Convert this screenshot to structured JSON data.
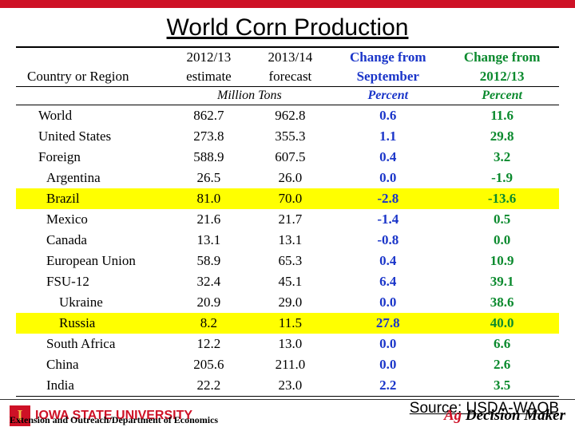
{
  "title": "World Corn Production",
  "headers": {
    "col1": "Country or Region",
    "col2a": "2012/13",
    "col2b": "estimate",
    "col3a": "2013/14",
    "col3b": "forecast",
    "col4a": "Change from",
    "col4b": "September",
    "col5a": "Change from",
    "col5b": "2012/13"
  },
  "subheader": {
    "unit": "Million Tons",
    "pct1": "Percent",
    "pct2": "Percent"
  },
  "rows": [
    {
      "label": "World",
      "est": "862.7",
      "fc": "962.8",
      "chs": "0.6",
      "chy": "11.6",
      "indent": 0,
      "hl": false
    },
    {
      "label": "United States",
      "est": "273.8",
      "fc": "355.3",
      "chs": "1.1",
      "chy": "29.8",
      "indent": 0,
      "hl": false
    },
    {
      "label": "Foreign",
      "est": "588.9",
      "fc": "607.5",
      "chs": "0.4",
      "chy": "3.2",
      "indent": 0,
      "hl": false
    },
    {
      "label": "Argentina",
      "est": "26.5",
      "fc": "26.0",
      "chs": "0.0",
      "chy": "-1.9",
      "indent": 1,
      "hl": false
    },
    {
      "label": "Brazil",
      "est": "81.0",
      "fc": "70.0",
      "chs": "-2.8",
      "chy": "-13.6",
      "indent": 1,
      "hl": true
    },
    {
      "label": "Mexico",
      "est": "21.6",
      "fc": "21.7",
      "chs": "-1.4",
      "chy": "0.5",
      "indent": 1,
      "hl": false
    },
    {
      "label": "Canada",
      "est": "13.1",
      "fc": "13.1",
      "chs": "-0.8",
      "chy": "0.0",
      "indent": 1,
      "hl": false
    },
    {
      "label": "European Union",
      "est": "58.9",
      "fc": "65.3",
      "chs": "0.4",
      "chy": "10.9",
      "indent": 1,
      "hl": false
    },
    {
      "label": "FSU-12",
      "est": "32.4",
      "fc": "45.1",
      "chs": "6.4",
      "chy": "39.1",
      "indent": 1,
      "hl": false
    },
    {
      "label": "Ukraine",
      "est": "20.9",
      "fc": "29.0",
      "chs": "0.0",
      "chy": "38.6",
      "indent": 2,
      "hl": false
    },
    {
      "label": "Russia",
      "est": "8.2",
      "fc": "11.5",
      "chs": "27.8",
      "chy": "40.0",
      "indent": 2,
      "hl": true
    },
    {
      "label": "South Africa",
      "est": "12.2",
      "fc": "13.0",
      "chs": "0.0",
      "chy": "6.6",
      "indent": 1,
      "hl": false
    },
    {
      "label": "China",
      "est": "205.6",
      "fc": "211.0",
      "chs": "0.0",
      "chy": "2.6",
      "indent": 1,
      "hl": false
    },
    {
      "label": "India",
      "est": "22.2",
      "fc": "23.0",
      "chs": "2.2",
      "chy": "3.5",
      "indent": 1,
      "hl": false
    }
  ],
  "source": "Source: USDA-WAOB",
  "footer": {
    "isu": "IOWA STATE UNIVERSITY",
    "ext": "Extension and Outreach/Department of Economics",
    "adm_ag": "Ag ",
    "adm_dm": "Decision Maker"
  },
  "colors": {
    "red": "#ce1126",
    "gold": "#f1be48",
    "blue": "#1a35c9",
    "green": "#0b8a2e",
    "highlight": "#ffff00"
  }
}
